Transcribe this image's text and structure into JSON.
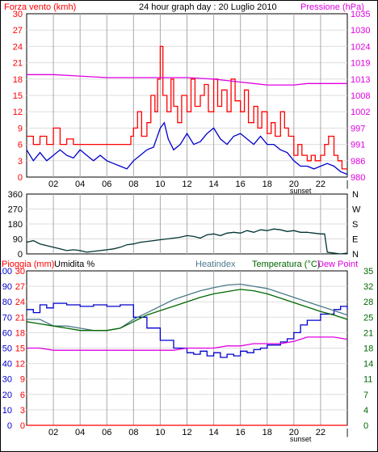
{
  "header": {
    "wind_label": "Forza vento (kmh)",
    "title": "24 hour graph day : 20 Luglio 2010",
    "pressure_label": "Pressione (hPa)"
  },
  "bottom_labels": {
    "rain": "Pioggia (mm)",
    "humidity": "Umidita %",
    "heatindex": "Heatindex",
    "temperature": "Temperatura (°C)",
    "dewpoint": "Dew Point"
  },
  "sunset_label": "sunset",
  "colors": {
    "wind_gust": "#ff0000",
    "wind_avg": "#0000cc",
    "pressure": "#e000e0",
    "direction": "#003333",
    "humidity": "#0000cc",
    "heatindex": "#4a7a8a",
    "temperature": "#006600",
    "dewpoint": "#e000e0",
    "rain": "#ff0000",
    "grid": "#aaaaaa",
    "frame": "#000000"
  },
  "chart_data": [
    {
      "type": "line",
      "name": "wind-pressure",
      "x_ticks": [
        "02",
        "04",
        "06",
        "08",
        "10",
        "12",
        "14",
        "16",
        "18",
        "20",
        "22",
        "|"
      ],
      "y_left_ticks": [
        "0",
        "3",
        "6",
        "9",
        "12",
        "15",
        "18",
        "21",
        "24",
        "27",
        "30"
      ],
      "y_right_ticks": [
        "980",
        "986",
        "991",
        "997",
        "1002",
        "1008",
        "1013",
        "1019",
        "1024",
        "1030",
        "1035"
      ],
      "ylim_left": [
        0,
        30
      ],
      "ylim_right": [
        980,
        1035
      ],
      "xlim": [
        0,
        24
      ],
      "series": [
        {
          "key": "gust",
          "axis": "left",
          "x": [
            0,
            0.5,
            1,
            1.5,
            2,
            2.5,
            3,
            3.5,
            4,
            4.5,
            5,
            5.5,
            6,
            6.5,
            7,
            7.5,
            7.8,
            8,
            8.3,
            8.6,
            9,
            9.3,
            9.6,
            9.8,
            10,
            10.2,
            10.5,
            10.8,
            11,
            11.3,
            11.6,
            12,
            12.3,
            12.6,
            13,
            13.3,
            13.6,
            14,
            14.3,
            14.6,
            15,
            15.3,
            15.6,
            16,
            16.3,
            16.6,
            17,
            17.3,
            17.6,
            18,
            18.3,
            18.6,
            19,
            19.3,
            19.6,
            20,
            20.3,
            20.6,
            21,
            21.3,
            21.6,
            22,
            22.3,
            22.6,
            23,
            23.3,
            23.6,
            24
          ],
          "y": [
            7.5,
            6,
            7.5,
            6,
            9,
            6,
            7,
            6,
            6,
            6,
            6,
            6,
            6,
            6,
            6,
            6,
            7.5,
            9,
            12,
            7.5,
            10,
            15,
            12,
            18,
            24,
            15,
            12,
            18,
            13,
            10,
            15,
            12,
            18,
            13,
            15,
            17,
            12,
            18,
            13,
            16,
            12,
            18,
            14,
            12,
            16,
            10,
            13,
            9,
            12,
            8,
            10,
            7.5,
            12,
            9,
            7.5,
            4,
            6,
            4,
            3,
            4,
            3,
            4,
            6,
            7.5,
            4,
            3,
            1.5,
            1.5
          ]
        },
        {
          "key": "average",
          "axis": "left",
          "x": [
            0,
            0.5,
            1,
            1.5,
            2,
            2.5,
            3,
            3.5,
            4,
            4.5,
            5,
            5.5,
            6,
            6.5,
            7,
            7.5,
            8,
            8.5,
            9,
            9.5,
            10,
            10.3,
            10.6,
            11,
            11.5,
            12,
            12.5,
            13,
            13.5,
            14,
            14.5,
            15,
            15.5,
            16,
            16.5,
            17,
            17.5,
            18,
            18.5,
            19,
            19.5,
            20,
            20.5,
            21,
            21.5,
            22,
            22.5,
            23,
            23.5,
            24
          ],
          "y": [
            5,
            3,
            4.5,
            3,
            4,
            5,
            4,
            3.5,
            5,
            4,
            3,
            4,
            3,
            2.5,
            2,
            1.5,
            3,
            4,
            5,
            5.5,
            9,
            10,
            7,
            5,
            6,
            8,
            6,
            6.5,
            8,
            9,
            7,
            6,
            7.5,
            8,
            7,
            6,
            7.5,
            6,
            6,
            5,
            4.5,
            3,
            2,
            2,
            1.5,
            2,
            2.5,
            2,
            1,
            0.5
          ]
        },
        {
          "key": "pressure",
          "axis": "right",
          "x": [
            0,
            2,
            4,
            6,
            8,
            10,
            12,
            14,
            15,
            16,
            17,
            18,
            19,
            20,
            21,
            22,
            23,
            24
          ],
          "y": [
            1014.5,
            1014.5,
            1014,
            1013.5,
            1013.5,
            1013.5,
            1013.5,
            1013,
            1012.5,
            1012,
            1011.5,
            1011,
            1011,
            1011,
            1011.5,
            1011.5,
            1011.5,
            1011.5
          ]
        }
      ]
    },
    {
      "type": "line",
      "name": "wind-direction",
      "x_ticks": [
        "02",
        "04",
        "06",
        "08",
        "10",
        "12",
        "14",
        "16",
        "18",
        "20",
        "22",
        "|"
      ],
      "y_left_ticks": [
        "0",
        "90",
        "180",
        "270",
        "360"
      ],
      "y_right_ticks": [
        "N",
        "E",
        "S",
        "W",
        "N"
      ],
      "ylim_left": [
        0,
        360
      ],
      "xlim": [
        0,
        24
      ],
      "series": [
        {
          "key": "direction",
          "axis": "left",
          "x": [
            0,
            0.5,
            1,
            1.5,
            2,
            2.5,
            3,
            3.5,
            4,
            4.5,
            5,
            5.5,
            6,
            6.5,
            7,
            7.5,
            8,
            8.5,
            9,
            9.5,
            10,
            10.5,
            11,
            11.5,
            12,
            12.5,
            13,
            13.5,
            14,
            14.5,
            15,
            15.5,
            16,
            16.5,
            17,
            17.5,
            18,
            18.5,
            19,
            19.5,
            20,
            20.5,
            21,
            21.5,
            22,
            22.3,
            22.5,
            23,
            23.5,
            24
          ],
          "y": [
            70,
            80,
            60,
            50,
            40,
            30,
            20,
            25,
            20,
            10,
            15,
            20,
            25,
            30,
            40,
            55,
            60,
            70,
            75,
            80,
            85,
            90,
            95,
            100,
            110,
            105,
            95,
            115,
            120,
            110,
            125,
            130,
            125,
            140,
            130,
            145,
            140,
            150,
            145,
            135,
            140,
            130,
            130,
            125,
            120,
            120,
            10,
            5,
            0,
            5
          ]
        }
      ]
    },
    {
      "type": "line",
      "name": "temp-humidity",
      "x_ticks": [
        "02",
        "04",
        "06",
        "08",
        "10",
        "12",
        "14",
        "16",
        "18",
        "20",
        "22",
        "|"
      ],
      "y_left_outer_ticks": [
        "0",
        "10",
        "20",
        "30",
        "40",
        "50",
        "60",
        "70",
        "80",
        "90",
        "100"
      ],
      "y_left_inner_ticks": [
        "0",
        "3",
        "6",
        "9",
        "12",
        "15",
        "18",
        "21",
        "24",
        "27",
        "30"
      ],
      "y_right_ticks": [
        "0",
        "4",
        "7",
        "11",
        "14",
        "18",
        "21",
        "25",
        "28",
        "32",
        "35"
      ],
      "ylim_temp": [
        0,
        35
      ],
      "ylim_humidity": [
        0,
        100
      ],
      "xlim": [
        0,
        24
      ],
      "series": [
        {
          "key": "humidity",
          "axis": "humidity",
          "x": [
            0,
            0.5,
            1,
            1.5,
            2,
            3,
            4,
            5,
            6,
            7,
            8,
            9,
            10,
            11,
            12,
            12.5,
            13,
            13.5,
            14,
            14.5,
            15,
            15.5,
            16,
            16.5,
            17,
            17.5,
            18,
            19,
            19.5,
            20,
            20.5,
            21,
            22,
            23,
            23.5,
            24
          ],
          "y": [
            75,
            73,
            78,
            76,
            79,
            78,
            77,
            78,
            77,
            78,
            70,
            63,
            55,
            50,
            47,
            46,
            48,
            45,
            47,
            44,
            46,
            45,
            48,
            47,
            49,
            50,
            52,
            54,
            56,
            60,
            65,
            68,
            72,
            75,
            77,
            75
          ]
        },
        {
          "key": "heatindex",
          "axis": "temp",
          "x": [
            0,
            1,
            2,
            3,
            4,
            5,
            6,
            7,
            8,
            9,
            10,
            11,
            12,
            13,
            14,
            15,
            16,
            17,
            18,
            19,
            20,
            21,
            22,
            23,
            24
          ],
          "y": [
            24,
            24,
            22.5,
            22.5,
            22,
            21.5,
            21.5,
            22,
            24,
            25.5,
            27,
            28.5,
            29.5,
            30.5,
            31.2,
            31.8,
            32,
            31.5,
            31,
            30,
            29,
            28,
            27,
            26,
            25
          ]
        },
        {
          "key": "temperature",
          "axis": "temp",
          "x": [
            0,
            1,
            2,
            3,
            4,
            5,
            6,
            7,
            8,
            9,
            10,
            11,
            12,
            13,
            14,
            15,
            16,
            17,
            18,
            19,
            20,
            21,
            22,
            23,
            24
          ],
          "y": [
            23.5,
            23,
            22.5,
            22,
            21.5,
            21.5,
            21.5,
            22,
            23.5,
            25,
            26,
            27,
            28,
            29,
            29.8,
            30.3,
            30.8,
            30.5,
            29.8,
            28.8,
            27.8,
            26.8,
            25.8,
            25,
            24
          ]
        },
        {
          "key": "dewpoint",
          "axis": "temp",
          "x": [
            0,
            1,
            2,
            3,
            4,
            5,
            6,
            7,
            8,
            9,
            10,
            11,
            12,
            13,
            14,
            15,
            16,
            17,
            18,
            19,
            20,
            21,
            22,
            23,
            24
          ],
          "y": [
            17.5,
            17.5,
            17,
            17,
            17,
            17,
            17,
            17,
            17,
            17,
            17,
            17,
            17.5,
            17.5,
            17.5,
            18,
            18,
            18.5,
            18.5,
            18.5,
            19,
            20,
            20,
            20,
            19.5
          ]
        },
        {
          "key": "rain",
          "axis": "temp",
          "x": [
            0,
            24
          ],
          "y": [
            0,
            0
          ]
        }
      ]
    }
  ]
}
